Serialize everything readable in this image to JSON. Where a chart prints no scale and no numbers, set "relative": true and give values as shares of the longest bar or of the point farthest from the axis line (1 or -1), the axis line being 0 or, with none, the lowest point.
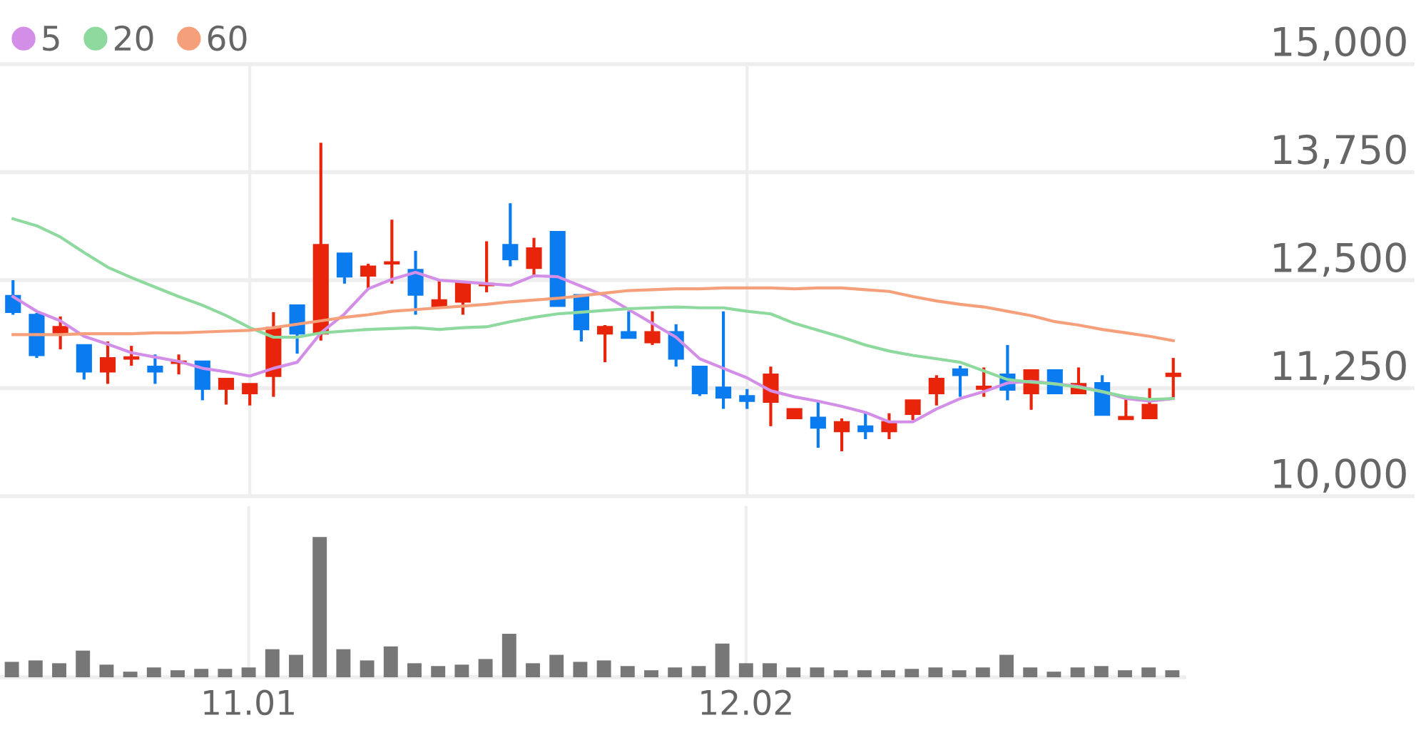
{
  "chart_data": [
    {
      "type": "candlestick",
      "categories": [
        null,
        null,
        null,
        null,
        null,
        null,
        null,
        null,
        null,
        null,
        "11.01",
        null,
        null,
        null,
        null,
        null,
        null,
        null,
        null,
        null,
        null,
        null,
        null,
        null,
        null,
        null,
        null,
        null,
        null,
        null,
        null,
        "12.02",
        null,
        null,
        null,
        null,
        null,
        null,
        null,
        null,
        null,
        null,
        null,
        null,
        null,
        null,
        null,
        null,
        null,
        null
      ],
      "ohlc": [
        [
          12320,
          12500,
          12100,
          12130
        ],
        [
          12100,
          12120,
          11600,
          11630
        ],
        [
          11880,
          12080,
          11700,
          11960
        ],
        [
          11750,
          11750,
          11350,
          11440
        ],
        [
          11440,
          11790,
          11300,
          11600
        ],
        [
          11590,
          11740,
          11510,
          11610
        ],
        [
          11500,
          11640,
          11300,
          11440
        ],
        [
          11540,
          11640,
          11410,
          11560
        ],
        [
          11560,
          11560,
          11110,
          11240
        ],
        [
          11240,
          11360,
          11060,
          11360
        ],
        [
          11190,
          11300,
          11050,
          11300
        ],
        [
          11390,
          12130,
          11150,
          11950
        ],
        [
          12210,
          12210,
          11650,
          11880
        ],
        [
          11880,
          14090,
          11800,
          12910
        ],
        [
          12810,
          12810,
          12460,
          12540
        ],
        [
          12550,
          12690,
          12400,
          12660
        ],
        [
          12690,
          13200,
          12460,
          12710
        ],
        [
          12620,
          12840,
          12100,
          12330
        ],
        [
          12190,
          12500,
          12190,
          12270
        ],
        [
          12250,
          12470,
          12100,
          12470
        ],
        [
          12440,
          12950,
          12360,
          12460
        ],
        [
          12910,
          13390,
          12660,
          12740
        ],
        [
          12640,
          12990,
          12550,
          12870
        ],
        [
          13060,
          13060,
          12200,
          12200
        ],
        [
          12330,
          12330,
          11790,
          11930
        ],
        [
          11880,
          11980,
          11550,
          11960
        ],
        [
          11900,
          12140,
          11830,
          11830
        ],
        [
          11780,
          12140,
          11750,
          11900
        ],
        [
          11900,
          11990,
          11500,
          11590
        ],
        [
          11500,
          11500,
          11160,
          11190
        ],
        [
          11260,
          12140,
          11010,
          11140
        ],
        [
          11160,
          11240,
          11010,
          11100
        ],
        [
          11090,
          11500,
          10810,
          11410
        ],
        [
          10900,
          11010,
          10900,
          11010
        ],
        [
          10910,
          11100,
          10560,
          10790
        ],
        [
          10750,
          10900,
          10520,
          10860
        ],
        [
          10810,
          10960,
          10660,
          10750
        ],
        [
          10750,
          10960,
          10660,
          10860
        ],
        [
          10950,
          11110,
          10880,
          11110
        ],
        [
          11190,
          11400,
          11050,
          11360
        ],
        [
          11470,
          11510,
          11150,
          11400
        ],
        [
          11240,
          11490,
          11150,
          11270
        ],
        [
          11410,
          11750,
          11110,
          11230
        ],
        [
          11190,
          11460,
          11000,
          11460
        ],
        [
          11460,
          11460,
          11190,
          11190
        ],
        [
          11190,
          11490,
          11190,
          11300
        ],
        [
          11310,
          11400,
          10940,
          10940
        ],
        [
          10890,
          11120,
          10890,
          10920
        ],
        [
          10900,
          11250,
          10900,
          11060
        ],
        [
          11390,
          11600,
          11140,
          11420
        ]
      ],
      "colors": [
        "#0a7cf0",
        "#0a7cf0",
        "#e8240a",
        "#0a7cf0",
        "#e8240a",
        "#e8240a",
        "#0a7cf0",
        "#e8240a",
        "#0a7cf0",
        "#e8240a",
        "#e8240a",
        "#e8240a",
        "#0a7cf0",
        "#e8240a",
        "#0a7cf0",
        "#e8240a",
        "#e8240a",
        "#0a7cf0",
        "#e8240a",
        "#e8240a",
        "#e8240a",
        "#0a7cf0",
        "#e8240a",
        "#0a7cf0",
        "#0a7cf0",
        "#e8240a",
        "#0a7cf0",
        "#e8240a",
        "#0a7cf0",
        "#0a7cf0",
        "#0a7cf0",
        "#0a7cf0",
        "#e8240a",
        "#e8240a",
        "#0a7cf0",
        "#e8240a",
        "#0a7cf0",
        "#e8240a",
        "#e8240a",
        "#e8240a",
        "#0a7cf0",
        "#e8240a",
        "#0a7cf0",
        "#e8240a",
        "#0a7cf0",
        "#e8240a",
        "#0a7cf0",
        "#e8240a",
        "#e8240a",
        "#e8240a"
      ],
      "series": [
        {
          "name": "5",
          "type": "line",
          "color": "#d38ee8",
          "values": [
            12310,
            12140,
            12030,
            11850,
            11760,
            11660,
            11610,
            11560,
            11480,
            11440,
            11390,
            11480,
            11550,
            11890,
            12110,
            12400,
            12510,
            12590,
            12500,
            12480,
            12460,
            12440,
            12550,
            12540,
            12430,
            12320,
            12160,
            12000,
            11840,
            11590,
            11480,
            11370,
            11220,
            11150,
            11100,
            11040,
            10970,
            10860,
            10860,
            11010,
            11130,
            11210,
            11310,
            11330,
            11300,
            11270,
            11210,
            11130,
            11100,
            11130
          ]
        },
        {
          "name": "20",
          "type": "line",
          "color": "#8dd99e",
          "values": [
            13210,
            13130,
            13000,
            12820,
            12650,
            12530,
            12420,
            12310,
            12210,
            12090,
            11950,
            11840,
            11840,
            11890,
            11910,
            11930,
            11940,
            11950,
            11930,
            11950,
            11960,
            12020,
            12070,
            12110,
            12130,
            12150,
            12170,
            12180,
            12190,
            12180,
            12180,
            12140,
            12110,
            12000,
            11920,
            11840,
            11750,
            11680,
            11630,
            11590,
            11550,
            11450,
            11350,
            11320,
            11300,
            11260,
            11210,
            11150,
            11120,
            11130
          ]
        },
        {
          "name": "60",
          "type": "line",
          "color": "#f5a07a",
          "values": [
            11870,
            11870,
            11870,
            11880,
            11880,
            11880,
            11890,
            11890,
            11900,
            11910,
            11920,
            11950,
            11990,
            12030,
            12070,
            12100,
            12140,
            12160,
            12180,
            12200,
            12220,
            12250,
            12270,
            12290,
            12320,
            12350,
            12380,
            12390,
            12400,
            12400,
            12410,
            12410,
            12410,
            12400,
            12410,
            12410,
            12390,
            12370,
            12310,
            12260,
            12220,
            12190,
            12140,
            12090,
            12020,
            11980,
            11930,
            11890,
            11850,
            11800
          ]
        }
      ],
      "ylim": [
        10000,
        15000
      ],
      "yticks": [
        {
          "value": 10000,
          "label": "10,000"
        },
        {
          "value": 11250,
          "label": "11,250"
        },
        {
          "value": 12500,
          "label": "12,500"
        },
        {
          "value": 13750,
          "label": "13,750"
        },
        {
          "value": 15000,
          "label": "15,000"
        }
      ],
      "grid": true,
      "legend": "top left",
      "tick_labels": "y"
    },
    {
      "type": "bar",
      "relative": true,
      "color": "#777777",
      "categories": [
        null,
        null,
        null,
        null,
        null,
        null,
        null,
        null,
        null,
        null,
        "11.01",
        null,
        null,
        null,
        null,
        null,
        null,
        null,
        null,
        null,
        null,
        null,
        null,
        null,
        null,
        null,
        null,
        null,
        null,
        null,
        null,
        "12.02",
        null,
        null,
        null,
        null,
        null,
        null,
        null,
        null,
        null,
        null,
        null,
        null,
        null,
        null,
        null,
        null,
        null,
        null
      ],
      "values": [
        0.11,
        0.12,
        0.1,
        0.19,
        0.09,
        0.04,
        0.07,
        0.05,
        0.06,
        0.06,
        0.07,
        0.2,
        0.16,
        1,
        0.2,
        0.12,
        0.22,
        0.1,
        0.08,
        0.09,
        0.13,
        0.31,
        0.1,
        0.16,
        0.11,
        0.12,
        0.08,
        0.05,
        0.07,
        0.08,
        0.24,
        0.1,
        0.1,
        0.07,
        0.07,
        0.05,
        0.05,
        0.05,
        0.06,
        0.07,
        0.05,
        0.07,
        0.16,
        0.07,
        0.04,
        0.07,
        0.08,
        0.05,
        0.07,
        0.05
      ],
      "grid": "x",
      "tick_labels": "x"
    }
  ]
}
